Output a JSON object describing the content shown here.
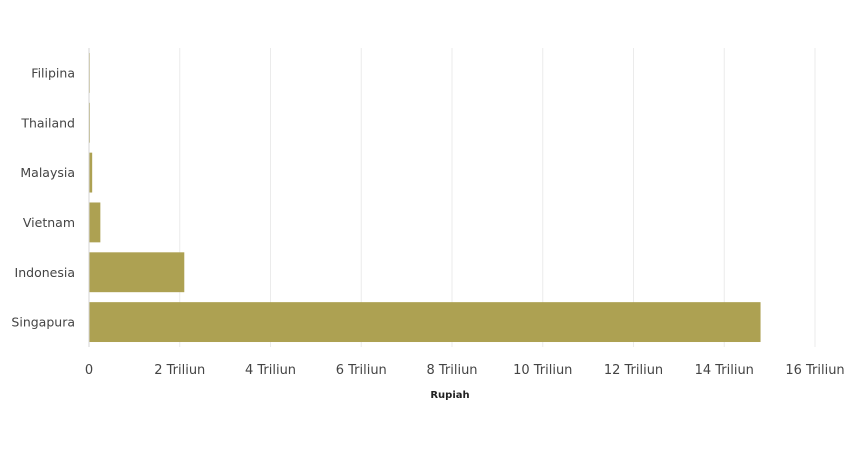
{
  "chart_data": {
    "type": "bar",
    "orientation": "horizontal",
    "categories": [
      "Singapura",
      "Indonesia",
      "Vietnam",
      "Malaysia",
      "Thailand",
      "Filipina"
    ],
    "values": [
      14800000000000,
      2100000000000,
      250000000000,
      70000000000,
      20000000000,
      5000000000
    ],
    "xlabel": "Rupiah",
    "ylabel": "",
    "xlim": [
      0,
      16000000000000
    ],
    "x_ticks": [
      {
        "value": 0,
        "label": "0"
      },
      {
        "value": 2000000000000,
        "label": "2 Triliun"
      },
      {
        "value": 4000000000000,
        "label": "4 Triliun"
      },
      {
        "value": 6000000000000,
        "label": "6 Triliun"
      },
      {
        "value": 8000000000000,
        "label": "8 Triliun"
      },
      {
        "value": 10000000000000,
        "label": "10 Triliun"
      },
      {
        "value": 12000000000000,
        "label": "12 Triliun"
      },
      {
        "value": 14000000000000,
        "label": "14 Triliun"
      },
      {
        "value": 16000000000000,
        "label": "16 Triliun"
      }
    ],
    "grid": true,
    "legend": "none",
    "bar_color": "#ADA152"
  }
}
